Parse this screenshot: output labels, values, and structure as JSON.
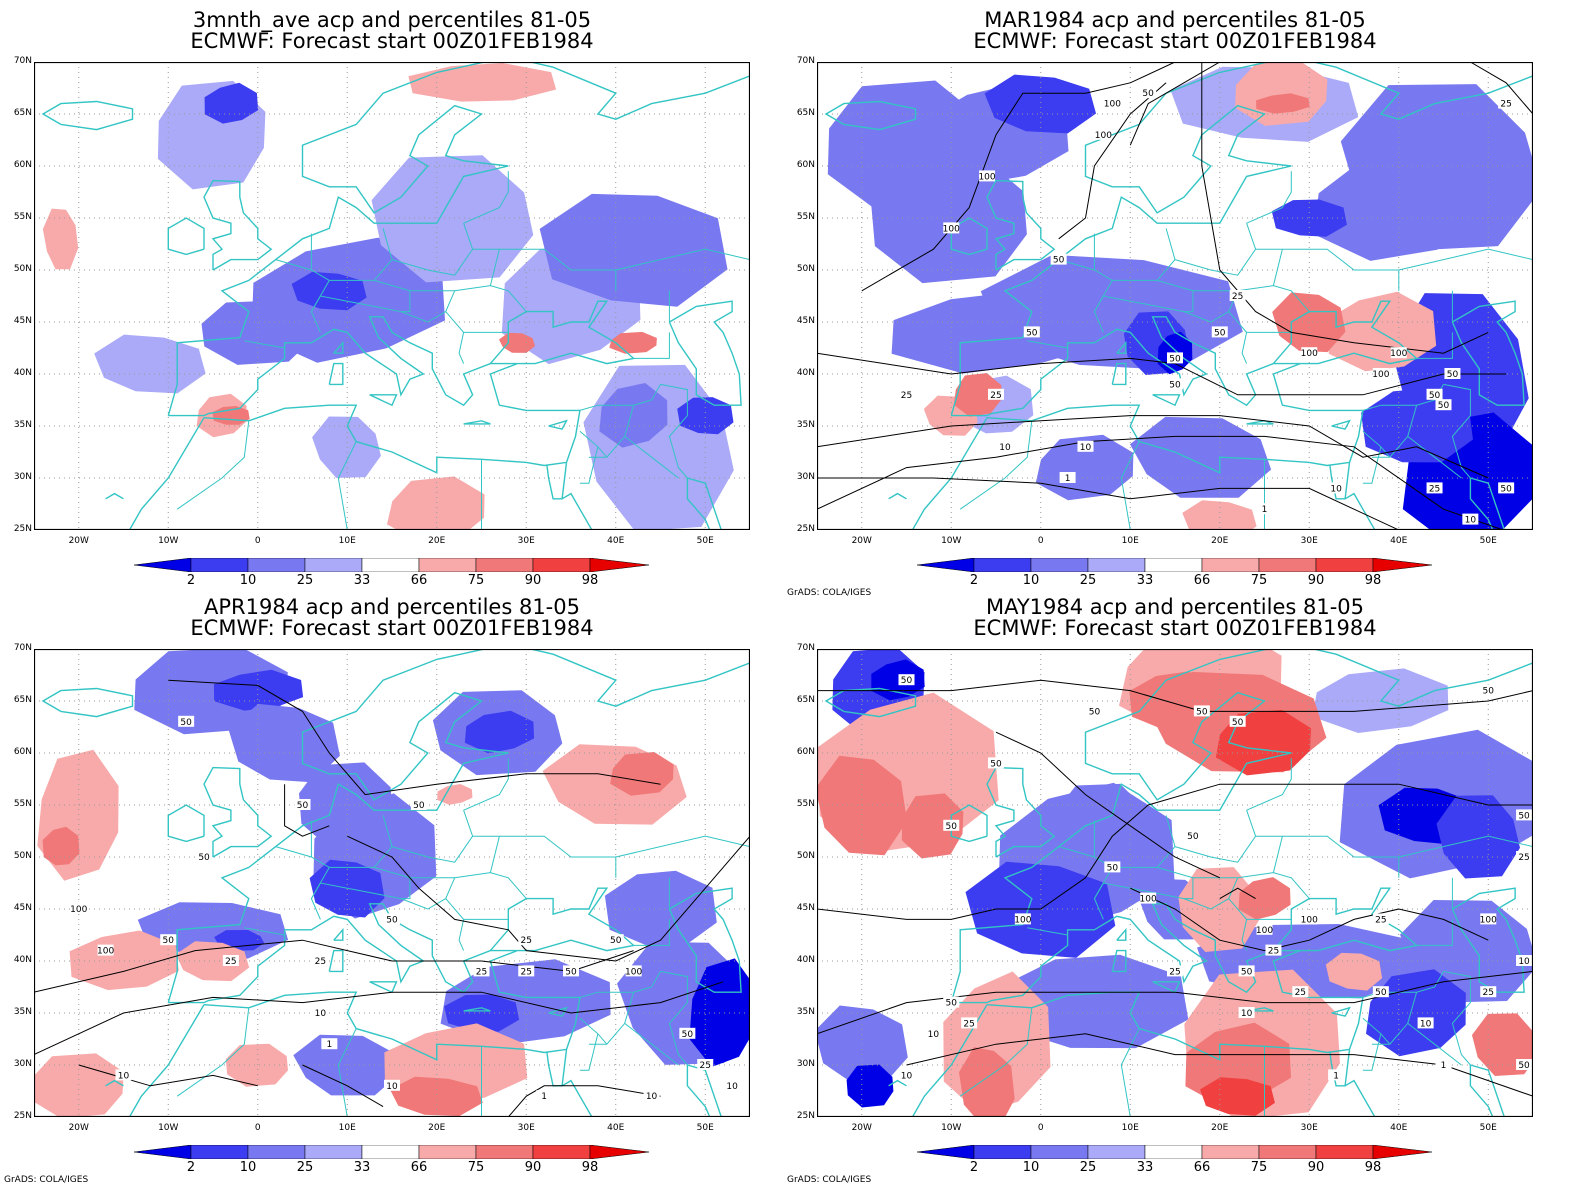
{
  "panels": [
    {
      "title1": "3mnth_ave acp and percentiles 81-05",
      "title2": "ECMWF: Forecast start 00Z01FEB1984",
      "credit": "",
      "contour_labels": []
    },
    {
      "title1": "MAR1984 acp and percentiles 81-05",
      "title2": "ECMWF: Forecast start 00Z01FEB1984",
      "credit": "GrADS: COLA/IGES",
      "contour_labels": [
        "50",
        "25",
        "100",
        "100",
        "100",
        "100",
        "50",
        "25",
        "50",
        "50",
        "50",
        "100",
        "100",
        "100",
        "50",
        "50",
        "50",
        "50",
        "25",
        "25",
        "10",
        "10",
        "1",
        "1",
        "10",
        "25",
        "50",
        "10"
      ]
    },
    {
      "title1": "APR1984 acp and percentiles 81-05",
      "title2": "ECMWF: Forecast start 00Z01FEB1984",
      "credit": "GrADS: COLA/IGES",
      "contour_labels": [
        "50",
        "50",
        "50",
        "50",
        "100",
        "100",
        "50",
        "25",
        "50",
        "25",
        "25",
        "25",
        "50",
        "50",
        "100",
        "25",
        "10",
        "1",
        "10",
        "10",
        "1",
        "10",
        "50",
        "25",
        "10"
      ]
    },
    {
      "title1": "MAY1984 acp and percentiles 81-05",
      "title2": "ECMWF: Forecast start 00Z01FEB1984",
      "credit": "GrADS: COLA/IGES",
      "contour_labels": [
        "50",
        "50",
        "50",
        "50",
        "50",
        "50",
        "50",
        "50",
        "50",
        "100",
        "100",
        "100",
        "25",
        "100",
        "25",
        "25",
        "100",
        "50",
        "25",
        "50",
        "50",
        "25",
        "10",
        "10",
        "1",
        "1",
        "50",
        "25",
        "10",
        "10",
        "10",
        "50",
        "25"
      ]
    }
  ],
  "lat_labels": [
    "70N",
    "65N",
    "60N",
    "55N",
    "50N",
    "45N",
    "40N",
    "35N",
    "30N",
    "25N"
  ],
  "lon_labels": [
    "20W",
    "10W",
    "0",
    "10E",
    "20E",
    "30E",
    "40E",
    "50E"
  ],
  "colorbar": {
    "labels": [
      "2",
      "10",
      "25",
      "33",
      "66",
      "75",
      "90",
      "98"
    ],
    "colors": [
      "#0000e6",
      "#3c3cf0",
      "#7878f0",
      "#aaaaf8",
      "#ffffff",
      "#f8aaaa",
      "#f07878",
      "#f04040",
      "#e60000"
    ]
  },
  "colors": {
    "coast": "#33c4c4",
    "contour": "#000000",
    "grid": "#999999"
  }
}
